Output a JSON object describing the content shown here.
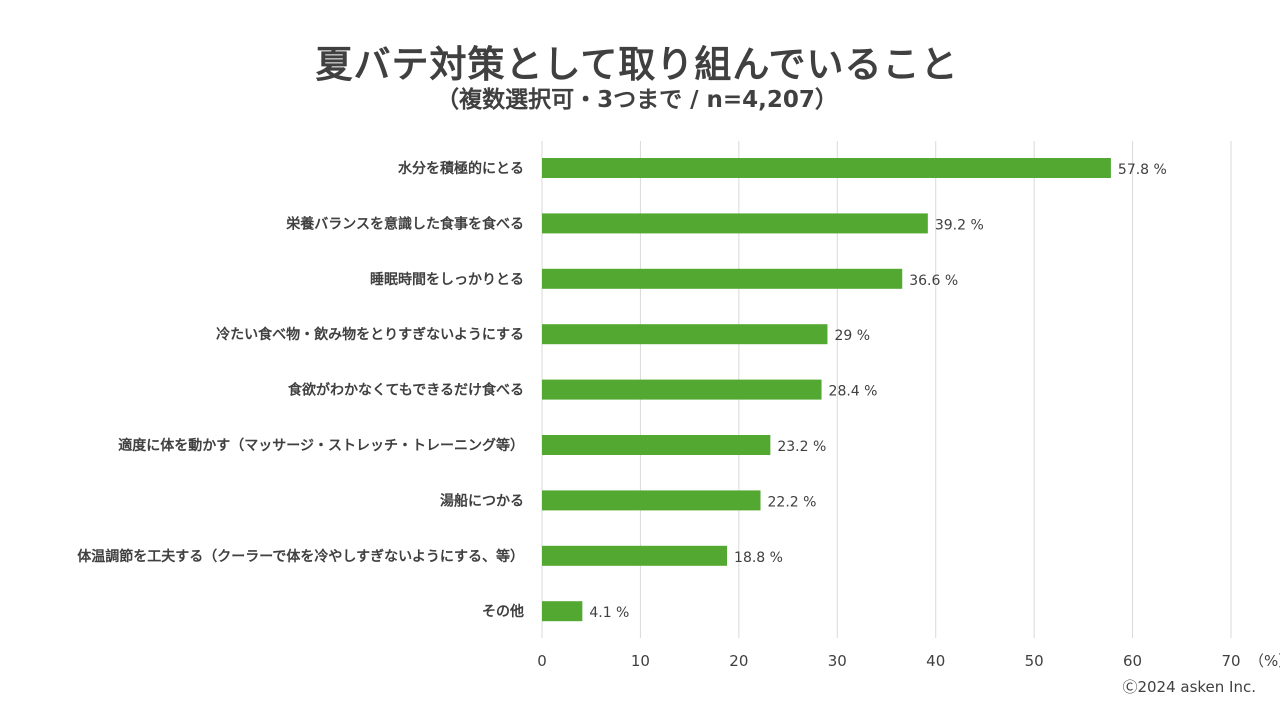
{
  "title": "夏バテ対策として取り組んでいること",
  "subtitle": "（複数選択可・3つまで / n=4,207）",
  "copyright": "Ⓒ2024 asken Inc.",
  "colors": {
    "bar": "#53a831",
    "grid": "#d9d9d9",
    "text": "#404040"
  },
  "chart_data": {
    "type": "bar",
    "orientation": "horizontal",
    "categories": [
      "水分を積極的にとる",
      "栄養バランスを意識した食事を食べる",
      "睡眠時間をしっかりとる",
      "冷たい食べ物・飲み物をとりすぎないようにする",
      "食欲がわかなくてもできるだけ食べる",
      "適度に体を動かす（マッサージ・ストレッチ・トレーニング等）",
      "湯船につかる",
      "体温調節を工夫する（クーラーで体を冷やしすぎないようにする、等）",
      "その他"
    ],
    "values": [
      57.8,
      39.2,
      36.6,
      29,
      28.4,
      23.2,
      22.2,
      18.8,
      4.1
    ],
    "value_labels": [
      "57.8",
      "39.2",
      "36.6",
      "29",
      "28.4",
      "23.2",
      "22.2",
      "18.8",
      "4.1"
    ],
    "value_unit": "%",
    "xlim": [
      0,
      70
    ],
    "xticks": [
      0,
      10,
      20,
      30,
      40,
      50,
      60,
      70
    ],
    "xunit_label": "（%）",
    "grid": true
  }
}
